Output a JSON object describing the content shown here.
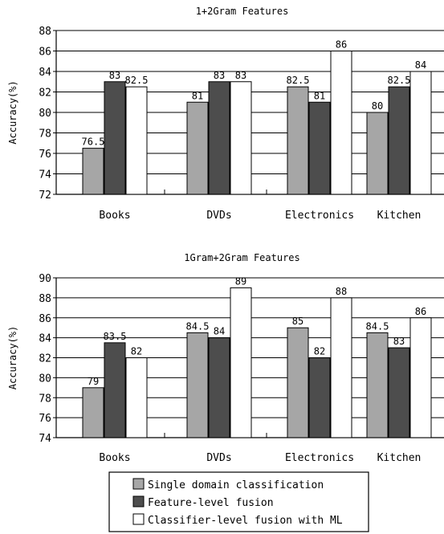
{
  "chart_data": [
    {
      "type": "bar",
      "title": "1+2Gram Features",
      "ylabel": "Accuracy(%)",
      "xlabel": "",
      "categories": [
        "Books",
        "DVDs",
        "Electronics",
        "Kitchen"
      ],
      "ylim": [
        72,
        88
      ],
      "yticks": [
        72,
        74,
        76,
        78,
        80,
        82,
        84,
        86,
        88
      ],
      "grid": "horizontal",
      "series": [
        {
          "name": "Single domain classification",
          "color": "#a6a6a6",
          "values": [
            76.5,
            81,
            82.5,
            80
          ],
          "labels": [
            "76.5",
            "81",
            "82.5",
            "80"
          ]
        },
        {
          "name": "Feature-level fusion",
          "color": "#4d4d4d",
          "values": [
            83,
            83,
            81,
            82.5
          ],
          "labels": [
            "83",
            "83",
            "81",
            "82.5"
          ]
        },
        {
          "name": "Classifier-level fusion with ML",
          "color": "#ffffff",
          "values": [
            82.5,
            83,
            86,
            84
          ],
          "labels": [
            "82.5",
            "83",
            "86",
            "84"
          ]
        }
      ]
    },
    {
      "type": "bar",
      "title": "1Gram+2Gram Features",
      "ylabel": "Accuracy(%)",
      "xlabel": "",
      "categories": [
        "Books",
        "DVDs",
        "Electronics",
        "Kitchen"
      ],
      "ylim": [
        74,
        90
      ],
      "yticks": [
        74,
        76,
        78,
        80,
        82,
        84,
        86,
        88,
        90
      ],
      "grid": "horizontal",
      "series": [
        {
          "name": "Single domain classification",
          "color": "#a6a6a6",
          "values": [
            79,
            84.5,
            85,
            84.5
          ],
          "labels": [
            "79",
            "84.5",
            "85",
            "84.5"
          ]
        },
        {
          "name": "Feature-level fusion",
          "color": "#4d4d4d",
          "values": [
            83.5,
            84,
            82,
            83
          ],
          "labels": [
            "83.5",
            "84",
            "82",
            "83"
          ]
        },
        {
          "name": "Classifier-level fusion with ML",
          "color": "#ffffff",
          "values": [
            82,
            89,
            88,
            86
          ],
          "labels": [
            "82",
            "89",
            "88",
            "86"
          ]
        }
      ]
    }
  ],
  "legend": {
    "placement": "bottom-center",
    "items": [
      {
        "label": "Single domain classification",
        "color": "#a6a6a6"
      },
      {
        "label": "Feature-level fusion",
        "color": "#4d4d4d"
      },
      {
        "label": "Classifier-level fusion with ML",
        "color": "#ffffff"
      }
    ]
  }
}
